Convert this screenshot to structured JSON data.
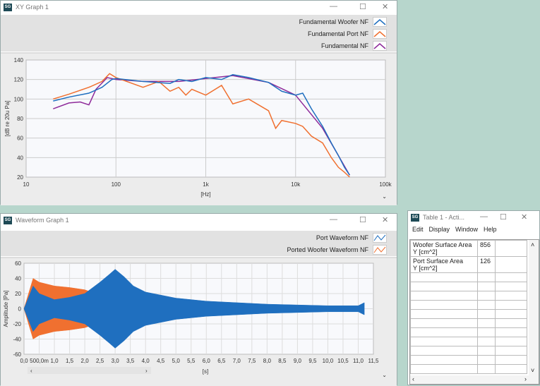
{
  "xy": {
    "title": "XY Graph 1",
    "legend": [
      {
        "name": "Fundamental Woofer NF",
        "color": "#1f6fbf"
      },
      {
        "name": "Fundamental Port NF",
        "color": "#f07030"
      },
      {
        "name": "Fundamental NF",
        "color": "#8e2a9a"
      }
    ],
    "ylabel": "[dB re 20u Pa]",
    "xlabel": "[Hz]",
    "yticks": [
      "140",
      "120",
      "100",
      "80",
      "60",
      "40",
      "20"
    ],
    "xticks": [
      "10",
      "100",
      "1k",
      "10k",
      "100k"
    ]
  },
  "wave": {
    "title": "Waveform Graph 1",
    "legend": [
      {
        "name": "Port Waveform NF",
        "color": "#1f6fbf"
      },
      {
        "name": "Ported Woofer Waveform NF",
        "color": "#f07030"
      }
    ],
    "ylabel": "Amplitude [Pa]",
    "xlabel": "[s]",
    "yticks": [
      "60",
      "40",
      "20",
      "0",
      "-20",
      "-40",
      "-60"
    ],
    "xticks": [
      "0,0",
      "500,0m",
      "1,0",
      "1,5",
      "2,0",
      "2,5",
      "3,0",
      "3,5",
      "4,0",
      "4,5",
      "5,0",
      "5,5",
      "6,0",
      "6,5",
      "7,0",
      "7,5",
      "8,0",
      "8,5",
      "9,0",
      "9,5",
      "10,0",
      "10,5",
      "11,0",
      "11,5"
    ]
  },
  "table": {
    "title": "Table 1 - Acti...",
    "menu": [
      "Edit",
      "Display",
      "Window",
      "Help"
    ],
    "rows": [
      {
        "label1": "Woofer Surface Area",
        "label2": "Y [cm^2]",
        "value": "856"
      },
      {
        "label1": "Port Surface Area",
        "label2": "Y [cm^2]",
        "value": "126"
      }
    ]
  },
  "chart_data": [
    {
      "type": "line",
      "xscale": "log",
      "xlim": [
        10,
        100000
      ],
      "ylim": [
        20,
        140
      ],
      "grid": true,
      "xlabel": "[Hz]",
      "ylabel": "[dB re 20u Pa]",
      "series": [
        {
          "name": "Fundamental Woofer NF",
          "x": [
            20,
            30,
            50,
            70,
            90,
            100,
            200,
            400,
            500,
            700,
            1000,
            1500,
            2000,
            3000,
            5000,
            7000,
            10000,
            12000,
            15000,
            20000,
            25000,
            30000,
            35000,
            40000
          ],
          "y": [
            98,
            102,
            106,
            112,
            120,
            121,
            118,
            116,
            120,
            118,
            122,
            120,
            125,
            122,
            117,
            108,
            104,
            106,
            90,
            72,
            55,
            42,
            30,
            22
          ]
        },
        {
          "name": "Fundamental Port NF",
          "x": [
            20,
            30,
            50,
            70,
            85,
            100,
            200,
            300,
            400,
            500,
            600,
            700,
            1000,
            1500,
            2000,
            3000,
            5000,
            6000,
            7000,
            10000,
            12000,
            15000,
            20000,
            25000,
            30000,
            35000,
            40000
          ],
          "y": [
            100,
            105,
            112,
            118,
            126,
            122,
            112,
            118,
            108,
            112,
            104,
            110,
            104,
            114,
            95,
            100,
            88,
            70,
            78,
            75,
            72,
            62,
            55,
            40,
            30,
            25,
            20
          ]
        },
        {
          "name": "Fundamental NF",
          "x": [
            20,
            30,
            40,
            50,
            60,
            80,
            100,
            200,
            500,
            1000,
            2000,
            5000,
            10000,
            20000,
            30000,
            40000
          ],
          "y": [
            90,
            96,
            97,
            94,
            110,
            122,
            120,
            118,
            118,
            121,
            124,
            117,
            104,
            70,
            42,
            22
          ]
        }
      ]
    },
    {
      "type": "area",
      "xlim": [
        0,
        11.5
      ],
      "ylim": [
        -60,
        60
      ],
      "grid": true,
      "xlabel": "[s]",
      "ylabel": "Amplitude [Pa]",
      "series": [
        {
          "name": "Port Waveform NF",
          "x": [
            0,
            0.3,
            0.5,
            1,
            1.5,
            2,
            2.5,
            2.8,
            3,
            3.3,
            3.6,
            4,
            5,
            6,
            7,
            8,
            9,
            10,
            11,
            11.2
          ],
          "y": [
            0,
            30,
            20,
            12,
            15,
            20,
            35,
            45,
            52,
            42,
            30,
            22,
            14,
            10,
            8,
            6,
            5,
            4,
            4,
            8
          ]
        },
        {
          "name": "Ported Woofer Waveform NF",
          "x": [
            0,
            0.3,
            0.5,
            1,
            1.5,
            2,
            2.5,
            3
          ],
          "y": [
            0,
            40,
            35,
            30,
            28,
            25,
            18,
            10
          ]
        }
      ]
    }
  ]
}
